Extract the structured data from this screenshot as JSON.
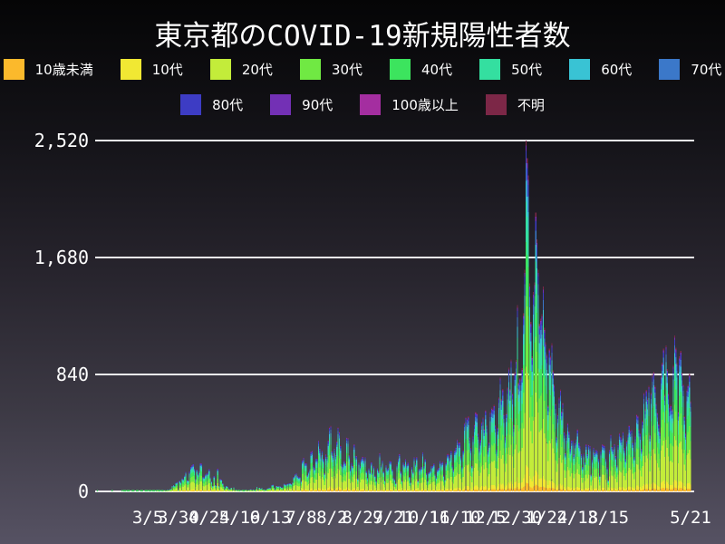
{
  "page": {
    "background_top": "#050506",
    "background_bottom": "#565263",
    "gridline_color": "#efeef2",
    "text_color": "#ffffff"
  },
  "chart_data": {
    "type": "bar",
    "stacked": true,
    "title": "東京都のCOVID-19新規陽性者数",
    "xlabel": "",
    "ylabel": "",
    "ylim": [
      0,
      2520
    ],
    "grid": true,
    "legend_position": "top",
    "start_date": "2020-01-24",
    "end_date": "2021-05-21",
    "x_unit": "day",
    "y_ticks": [
      {
        "label": "0",
        "value": 0
      },
      {
        "label": "840",
        "value": 840
      },
      {
        "label": "1,680",
        "value": 1680
      },
      {
        "label": "2,520",
        "value": 2520
      }
    ],
    "x_ticks": [
      {
        "label": "3/5",
        "day": 41
      },
      {
        "label": "3/30",
        "day": 66
      },
      {
        "label": "4/24",
        "day": 91
      },
      {
        "label": "5/19",
        "day": 116
      },
      {
        "label": "6/13",
        "day": 141
      },
      {
        "label": "7/8",
        "day": 166
      },
      {
        "label": "8/2",
        "day": 191
      },
      {
        "label": "8/27",
        "day": 216
      },
      {
        "label": "9/21",
        "day": 241
      },
      {
        "label": "10/16",
        "day": 266
      },
      {
        "label": "11/10",
        "day": 291
      },
      {
        "label": "12/5",
        "day": 316
      },
      {
        "label": "12/30",
        "day": 341
      },
      {
        "label": "1/24",
        "day": 366
      },
      {
        "label": "2/18",
        "day": 391
      },
      {
        "label": "3/15",
        "day": 416
      },
      {
        "label": "5/21",
        "day": 483
      }
    ],
    "series": [
      {
        "key": "under10",
        "name": "10歳未満",
        "color": "#fbb92c",
        "share": 0.025
      },
      {
        "key": "10s",
        "name": "10代",
        "color": "#f1e833",
        "share": 0.05
      },
      {
        "key": "20s",
        "name": "20代",
        "color": "#c3ec3a",
        "share": 0.28
      },
      {
        "key": "30s",
        "name": "30代",
        "color": "#70e943",
        "share": 0.2
      },
      {
        "key": "40s",
        "name": "40代",
        "color": "#3ce45e",
        "share": 0.155
      },
      {
        "key": "50s",
        "name": "50代",
        "color": "#34dfa0",
        "share": 0.115
      },
      {
        "key": "60s",
        "name": "60代",
        "color": "#39c3d4",
        "share": 0.06
      },
      {
        "key": "70s",
        "name": "70代",
        "color": "#3b78c9",
        "share": 0.05
      },
      {
        "key": "80s",
        "name": "80代",
        "color": "#3d3cc4",
        "share": 0.035
      },
      {
        "key": "90s",
        "name": "90代",
        "color": "#7330b5",
        "share": 0.015
      },
      {
        "key": "100plus",
        "name": "100歳以上",
        "color": "#a42ea0",
        "share": 0.001
      },
      {
        "key": "unknown",
        "name": "不明",
        "color": "#7c2747",
        "share": 0.014
      }
    ],
    "daily_totals": [
      1,
      0,
      0,
      0,
      0,
      0,
      0,
      0,
      0,
      0,
      0,
      0,
      1,
      0,
      0,
      0,
      0,
      0,
      0,
      0,
      3,
      2,
      1,
      3,
      5,
      3,
      3,
      0,
      3,
      2,
      1,
      0,
      1,
      2,
      0,
      2,
      1,
      1,
      0,
      1,
      2,
      3,
      2,
      5,
      2,
      3,
      5,
      7,
      6,
      10,
      5,
      3,
      2,
      6,
      9,
      7,
      8,
      12,
      10,
      16,
      17,
      41,
      47,
      40,
      63,
      68,
      13,
      78,
      66,
      97,
      89,
      116,
      143,
      83,
      80,
      144,
      178,
      189,
      197,
      166,
      91,
      159,
      127,
      149,
      206,
      201,
      107,
      102,
      123,
      132,
      134,
      161,
      103,
      72,
      39,
      112,
      47,
      46,
      165,
      39,
      93,
      87,
      58,
      38,
      23,
      39,
      36,
      22,
      15,
      28,
      10,
      30,
      9,
      14,
      5,
      10,
      5,
      5,
      11,
      3,
      2,
      14,
      8,
      10,
      10,
      15,
      9,
      14,
      5,
      13,
      34,
      12,
      28,
      20,
      26,
      14,
      13,
      12,
      18,
      22,
      25,
      24,
      47,
      48,
      27,
      16,
      41,
      35,
      39,
      35,
      29,
      31,
      55,
      48,
      54,
      57,
      60,
      58,
      54,
      67,
      107,
      124,
      131,
      111,
      102,
      106,
      75,
      224,
      243,
      206,
      206,
      119,
      143,
      165,
      286,
      293,
      188,
      168,
      237,
      238,
      366,
      310,
      260,
      295,
      239,
      131,
      266,
      250,
      367,
      463,
      472,
      292,
      258,
      309,
      263,
      360,
      462,
      429,
      331,
      197,
      188,
      222,
      206,
      389,
      385,
      260,
      161,
      207,
      186,
      339,
      258,
      256,
      95,
      212,
      182,
      236,
      250,
      226,
      247,
      148,
      100,
      170,
      141,
      211,
      136,
      181,
      116,
      77,
      170,
      149,
      276,
      187,
      226,
      146,
      80,
      191,
      163,
      171,
      220,
      218,
      162,
      98,
      88,
      59,
      195,
      235,
      270,
      144,
      78,
      212,
      194,
      235,
      196,
      207,
      107,
      66,
      177,
      142,
      248,
      203,
      249,
      78,
      166,
      166,
      177,
      284,
      184,
      235,
      132,
      78,
      139,
      150,
      185,
      186,
      203,
      124,
      102,
      158,
      171,
      221,
      204,
      215,
      116,
      87,
      209,
      269,
      269,
      242,
      294,
      189,
      157,
      293,
      317,
      374,
      352,
      352,
      255,
      180,
      298,
      493,
      534,
      522,
      539,
      391,
      314,
      186,
      401,
      481,
      570,
      561,
      418,
      311,
      372,
      500,
      533,
      449,
      584,
      480,
      299,
      352,
      572,
      602,
      595,
      621,
      480,
      305,
      460,
      678,
      822,
      664,
      736,
      556,
      392,
      563,
      748,
      888,
      736,
      949,
      708,
      481,
      856,
      944,
      1337,
      783,
      814,
      816,
      884,
      1278,
      1591,
      2520,
      2392,
      2268,
      1494,
      1219,
      970,
      1433,
      1502,
      2001,
      1809,
      1592,
      1204,
      1240,
      1274,
      1471,
      1175,
      1070,
      986,
      618,
      1026,
      973,
      1064,
      868,
      769,
      633,
      393,
      556,
      676,
      734,
      577,
      639,
      429,
      276,
      412,
      491,
      434,
      307,
      369,
      371,
      266,
      350,
      378,
      445,
      353,
      327,
      272,
      178,
      275,
      213,
      340,
      270,
      337,
      329,
      121,
      232,
      316,
      279,
      301,
      293,
      237,
      116,
      290,
      340,
      335,
      330,
      239,
      175,
      82,
      300,
      409,
      323,
      303,
      342,
      256,
      187,
      337,
      420,
      394,
      376,
      430,
      313,
      234,
      364,
      414,
      475,
      440,
      446,
      355,
      249,
      399,
      555,
      545,
      446,
      421,
      306,
      510,
      711,
      591,
      729,
      667,
      759,
      405,
      711,
      843,
      861,
      759,
      635,
      567,
      485,
      425,
      828,
      925,
      1027,
      698,
      1050,
      879,
      708,
      609,
      621,
      591,
      907,
      1121,
      1032,
      925,
      573,
      969,
      1010,
      854,
      772,
      542,
      419,
      732,
      766,
      843,
      649
    ]
  }
}
